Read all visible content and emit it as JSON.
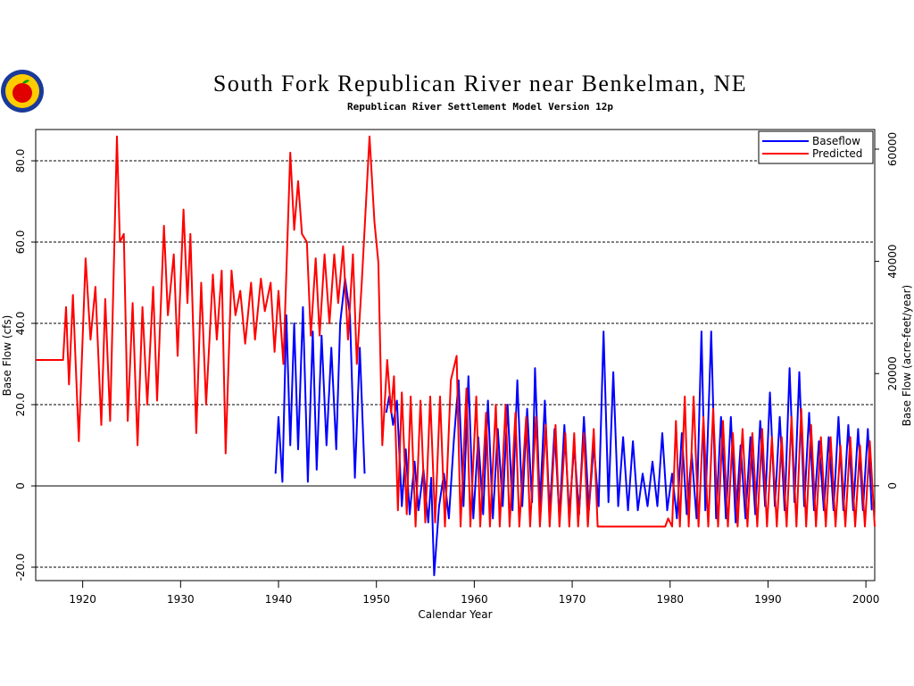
{
  "chart_data": {
    "type": "line",
    "title": "South Fork Republican River near Benkelman, NE",
    "subtitle": "Republican River Settlement Model Version 12p",
    "xlabel": "Calendar Year",
    "ylabel": "Base Flow (cfs)",
    "y2label": "Base Flow (acre-feet/year)",
    "xlim": [
      1915.2,
      2000.9
    ],
    "xticks": [
      1920,
      1930,
      1940,
      1950,
      1960,
      1970,
      1980,
      1990,
      2000
    ],
    "ylim": [
      -23.3,
      87.7
    ],
    "yticks": [
      {
        "value": -20,
        "label": "-20.0"
      },
      0,
      {
        "value": 20,
        "label": "20.0"
      },
      {
        "value": 40,
        "label": "40.0"
      },
      {
        "value": 60,
        "label": "60.0"
      },
      {
        "value": 80,
        "label": "80.0"
      }
    ],
    "y2lim": [
      -16900,
      63500
    ],
    "y2ticks": [
      0,
      20000,
      40000,
      60000
    ],
    "grid": true,
    "legend": "upper right",
    "series": [
      {
        "name": "Baseflow",
        "color": "#0000ff",
        "x": [
          1939.7,
          1940.0,
          1940.4,
          1940.8,
          1941.2,
          1941.6,
          1942.0,
          1942.5,
          1943.0,
          1943.5,
          1943.9,
          1944.4,
          1944.9,
          1945.4,
          1945.9,
          1946.3,
          1946.8,
          1947.3,
          1947.8,
          1948.3,
          1948.8,
          1950.0,
          1951.0,
          1951.3,
          1951.7,
          1952.1,
          1952.6,
          1953.0,
          1953.4,
          1953.9,
          1954.3,
          1954.8,
          1955.3,
          1955.6,
          1955.9,
          1956.4,
          1956.9,
          1957.4,
          1957.9,
          1958.4,
          1958.9,
          1959.4,
          1959.9,
          1960.4,
          1960.9,
          1961.4,
          1961.9,
          1962.4,
          1962.9,
          1963.4,
          1963.9,
          1964.4,
          1964.9,
          1965.4,
          1965.9,
          1966.2,
          1966.7,
          1967.2,
          1967.7,
          1968.2,
          1968.7,
          1969.2,
          1969.7,
          1970.2,
          1970.7,
          1971.2,
          1971.7,
          1972.2,
          1972.7,
          1973.2,
          1973.7,
          1974.2,
          1974.7,
          1975.2,
          1975.7,
          1976.2,
          1976.7,
          1977.2,
          1977.7,
          1978.2,
          1978.7,
          1979.2,
          1979.7,
          1980.2,
          1980.7,
          1981.2,
          1981.7,
          1982.2,
          1982.7,
          1983.2,
          1983.6,
          1984.2,
          1984.7,
          1985.2,
          1985.7,
          1986.2,
          1986.7,
          1987.2,
          1987.7,
          1988.2,
          1988.7,
          1989.2,
          1989.7,
          1990.2,
          1990.7,
          1991.2,
          1991.7,
          1992.2,
          1992.7,
          1993.2,
          1993.7,
          1994.2,
          1994.7,
          1995.2,
          1995.7,
          1996.2,
          1996.7,
          1997.2,
          1997.7,
          1998.2,
          1998.7,
          1999.2,
          1999.7,
          2000.2,
          2000.6
        ],
        "values": [
          3,
          17,
          1,
          42,
          10,
          40,
          9,
          44,
          1,
          38,
          4,
          37,
          10,
          34,
          9,
          40,
          51,
          42,
          2,
          34,
          3,
          null,
          18,
          22,
          15,
          21,
          -5,
          9,
          -7,
          6,
          -6,
          4,
          -9,
          2,
          -22,
          -5,
          3,
          -8,
          11,
          26,
          -5,
          27,
          -8,
          12,
          -7,
          21,
          -8,
          14,
          -5,
          20,
          -6,
          26,
          -5,
          19,
          -4,
          29,
          -5,
          21,
          -7,
          14,
          -8,
          15,
          -7,
          10,
          -7,
          17,
          -6,
          10,
          -5,
          38,
          -4,
          28,
          -5,
          12,
          -6,
          11,
          -6,
          3,
          -5,
          6,
          -5,
          13,
          -6,
          3,
          -8,
          13,
          -7,
          8,
          -8,
          38,
          -6,
          38,
          -8,
          17,
          -8,
          17,
          -9,
          10,
          -8,
          12,
          -7,
          16,
          -5,
          23,
          -5,
          17,
          -6,
          29,
          -4,
          28,
          -5,
          18,
          -6,
          11,
          -6,
          12,
          -6,
          17,
          -6,
          15,
          -6,
          14,
          -6,
          14,
          -6
        ]
      },
      {
        "name": "Predicted",
        "color": "#ff0000",
        "x": [
          1915.2,
          1918.0,
          1918.3,
          1918.6,
          1919.0,
          1919.6,
          1920.3,
          1920.8,
          1921.3,
          1921.9,
          1922.3,
          1922.8,
          1923.5,
          1923.8,
          1924.2,
          1924.6,
          1925.1,
          1925.6,
          1926.1,
          1926.6,
          1927.2,
          1927.6,
          1928.3,
          1928.7,
          1929.3,
          1929.7,
          1930.3,
          1930.7,
          1931.0,
          1931.6,
          1932.1,
          1932.6,
          1933.3,
          1933.7,
          1934.2,
          1934.6,
          1935.2,
          1935.6,
          1936.1,
          1936.6,
          1937.2,
          1937.6,
          1938.2,
          1938.6,
          1939.2,
          1939.6,
          1940.0,
          1940.5,
          1941.2,
          1941.6,
          1942.0,
          1942.4,
          1942.9,
          1943.3,
          1943.8,
          1944.2,
          1944.7,
          1945.2,
          1945.7,
          1946.1,
          1946.6,
          1947.1,
          1947.6,
          1948.0,
          1948.5,
          1949.3,
          1949.8,
          1950.2,
          1950.6,
          1951.1,
          1951.5,
          1951.8,
          1952.2,
          1952.6,
          1953.1,
          1953.5,
          1954.0,
          1954.5,
          1955.0,
          1955.5,
          1956.0,
          1956.5,
          1957.0,
          1957.6,
          1958.2,
          1958.6,
          1959.2,
          1959.6,
          1960.2,
          1960.6,
          1961.2,
          1961.6,
          1962.2,
          1962.6,
          1963.2,
          1963.6,
          1964.2,
          1964.6,
          1965.3,
          1965.7,
          1966.3,
          1966.7,
          1967.3,
          1967.7,
          1968.3,
          1968.7,
          1969.3,
          1969.7,
          1970.2,
          1970.6,
          1971.2,
          1971.6,
          1972.2,
          1972.6,
          1973.5,
          1979.5,
          1979.8,
          1980.2,
          1980.6,
          1981.0,
          1981.5,
          1981.9,
          1982.4,
          1982.9,
          1983.4,
          1983.9,
          1984.4,
          1984.9,
          1985.4,
          1985.9,
          1986.4,
          1986.9,
          1987.4,
          1987.9,
          1988.4,
          1988.9,
          1989.4,
          1989.9,
          1990.4,
          1990.9,
          1991.4,
          1991.9,
          1992.4,
          1992.9,
          1993.4,
          1993.9,
          1994.4,
          1994.9,
          1995.4,
          1995.9,
          1996.4,
          1996.9,
          1997.4,
          1997.9,
          1998.4,
          1998.9,
          1999.4,
          1999.9,
          2000.4,
          2000.9
        ],
        "values": [
          31,
          31,
          44,
          25,
          47,
          11,
          56,
          36,
          49,
          15,
          46,
          16,
          86,
          60,
          62,
          16,
          45,
          10,
          44,
          20,
          49,
          21,
          64,
          42,
          57,
          32,
          68,
          45,
          62,
          13,
          50,
          20,
          52,
          36,
          53,
          8,
          53,
          42,
          48,
          35,
          50,
          36,
          51,
          43,
          50,
          33,
          48,
          30,
          82,
          63,
          75,
          62,
          60,
          37,
          56,
          37,
          57,
          40,
          57,
          45,
          59,
          36,
          57,
          30,
          50,
          86,
          65,
          55,
          10,
          31,
          18,
          27,
          -6,
          23,
          -7,
          22,
          -10,
          21,
          -9,
          22,
          -9,
          22,
          -10,
          26,
          32,
          -10,
          24,
          -10,
          22,
          -10,
          18,
          -10,
          20,
          -10,
          20,
          -10,
          18,
          -10,
          17,
          -10,
          17,
          -10,
          15,
          -10,
          15,
          -10,
          13,
          -10,
          13,
          -10,
          13,
          -10,
          14,
          -10,
          -10,
          -10,
          -8,
          -10,
          16,
          -10,
          22,
          -10,
          22,
          -10,
          17,
          -10,
          19,
          -10,
          16,
          -10,
          13,
          -10,
          14,
          -10,
          13,
          -10,
          14,
          -10,
          12,
          -10,
          12,
          -10,
          17,
          -10,
          19,
          -10,
          15,
          -10,
          12,
          -10,
          12,
          -10,
          10,
          -10,
          12,
          -10,
          10,
          -10,
          11,
          -10
        ]
      }
    ]
  }
}
